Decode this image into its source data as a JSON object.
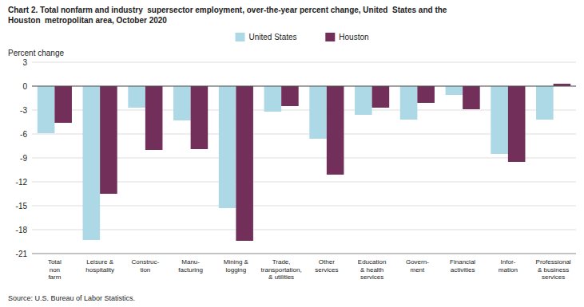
{
  "chart_data": {
    "type": "bar",
    "title": "Chart 2. Total nonfarm and industry  supersector employment, over-the-year percent change, United  States and the\nHouston  metropolitan area, October 2020",
    "y_label": "Percent change",
    "source": "Source: U.S. Bureau of Labor Statistics.",
    "categories": [
      "Total\nnon\nfarm",
      "Leisure &\nhospitality",
      "Construc-\ntion",
      "Manu-\nfacturing",
      "Mining &\nlogging",
      "Trade,\ntransportation,\n& utilities",
      "Other\nservices",
      "Education\n& health\nservices",
      "Govern-\nment",
      "Financial\nactivities",
      "Infor-\nmation",
      "Professional\n& business\nservices"
    ],
    "series": [
      {
        "name": "United States",
        "color": "#add8e6",
        "values": [
          -5.9,
          -19.3,
          -2.7,
          -4.3,
          -15.3,
          -3.2,
          -6.6,
          -3.6,
          -4.2,
          -1.1,
          -8.5,
          -4.2
        ]
      },
      {
        "name": "Houston",
        "color": "#722F5A",
        "values": [
          -4.6,
          -13.5,
          -8.0,
          -7.9,
          -19.4,
          -2.5,
          -11.1,
          -2.7,
          -2.1,
          -2.9,
          -9.5,
          0.3
        ]
      }
    ],
    "ylim": [
      -21,
      3
    ],
    "yticks": [
      3,
      0,
      -3,
      -6,
      -9,
      -12,
      -15,
      -18,
      -21
    ],
    "grid": true,
    "legend": "top"
  }
}
